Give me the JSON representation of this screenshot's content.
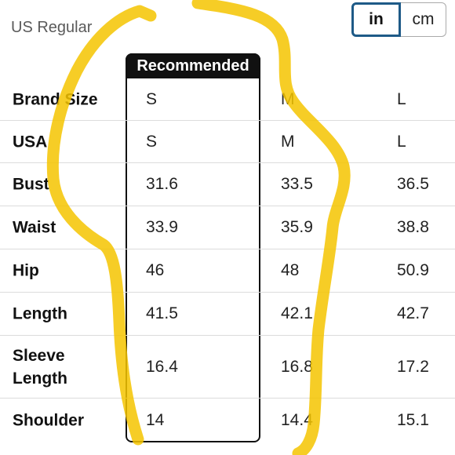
{
  "region_label": "US Regular",
  "unit_toggle": {
    "active": "in",
    "inactive": "cm"
  },
  "recommended_label": "Recommended",
  "rows": [
    {
      "label": "Brand Size",
      "values": [
        "S",
        "M",
        "L"
      ]
    },
    {
      "label": "USA",
      "values": [
        "S",
        "M",
        "L"
      ]
    },
    {
      "label": "Bust",
      "values": [
        "31.6",
        "33.5",
        "36.5"
      ]
    },
    {
      "label": "Waist",
      "values": [
        "33.9",
        "35.9",
        "38.8"
      ]
    },
    {
      "label": "Hip",
      "values": [
        "46",
        "48",
        "50.9"
      ]
    },
    {
      "label": "Length",
      "values": [
        "41.5",
        "42.1",
        "42.7"
      ]
    },
    {
      "label": "Sleeve Length",
      "values": [
        "16.4",
        "16.8",
        "17.2"
      ]
    },
    {
      "label": "Shoulder",
      "values": [
        "14",
        "14.4",
        "15.1"
      ]
    }
  ],
  "highlight_color": "#f5c400"
}
